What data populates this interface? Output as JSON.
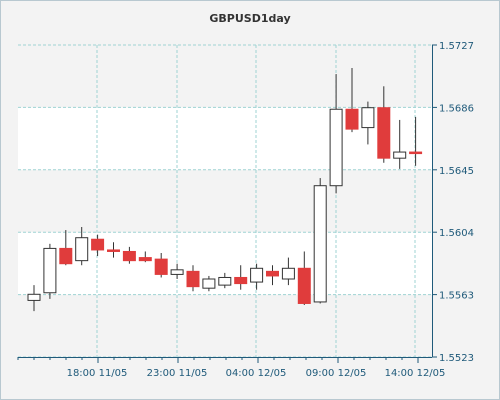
{
  "chart_data": {
    "type": "candlestick",
    "title": "GBPUSD1day",
    "ylim": [
      1.5523,
      1.5727
    ],
    "y_ticks": [
      "1.5523",
      "1.5563",
      "1.5604",
      "1.5645",
      "1.5686",
      "1.5727"
    ],
    "x_ticks": [
      "18:00 11/05",
      "23:00 11/05",
      "04:00 12/05",
      "09:00 12/05",
      "14:00 12/05"
    ],
    "up_color": "#ffffff",
    "down_color": "#e03c3c",
    "grid": true,
    "candles": [
      {
        "open": 1.556,
        "high": 1.557,
        "low": 1.5553,
        "close": 1.5564
      },
      {
        "open": 1.5565,
        "high": 1.5597,
        "low": 1.5561,
        "close": 1.5594
      },
      {
        "open": 1.5594,
        "high": 1.5606,
        "low": 1.5583,
        "close": 1.5584
      },
      {
        "open": 1.5586,
        "high": 1.5608,
        "low": 1.5583,
        "close": 1.5601
      },
      {
        "open": 1.56,
        "high": 1.5603,
        "low": 1.5589,
        "close": 1.5593
      },
      {
        "open": 1.5593,
        "high": 1.5598,
        "low": 1.5588,
        "close": 1.5592
      },
      {
        "open": 1.5592,
        "high": 1.5595,
        "low": 1.5584,
        "close": 1.5586
      },
      {
        "open": 1.5588,
        "high": 1.5592,
        "low": 1.5585,
        "close": 1.5586
      },
      {
        "open": 1.5587,
        "high": 1.5591,
        "low": 1.5575,
        "close": 1.5577
      },
      {
        "open": 1.5577,
        "high": 1.5584,
        "low": 1.5574,
        "close": 1.558
      },
      {
        "open": 1.5579,
        "high": 1.5583,
        "low": 1.5566,
        "close": 1.5569
      },
      {
        "open": 1.5568,
        "high": 1.5576,
        "low": 1.5566,
        "close": 1.5574
      },
      {
        "open": 1.557,
        "high": 1.5578,
        "low": 1.5568,
        "close": 1.5575
      },
      {
        "open": 1.5575,
        "high": 1.5583,
        "low": 1.5567,
        "close": 1.5571
      },
      {
        "open": 1.5572,
        "high": 1.5584,
        "low": 1.5567,
        "close": 1.5581
      },
      {
        "open": 1.5579,
        "high": 1.5583,
        "low": 1.557,
        "close": 1.5576
      },
      {
        "open": 1.5574,
        "high": 1.5588,
        "low": 1.557,
        "close": 1.5581
      },
      {
        "open": 1.5581,
        "high": 1.5592,
        "low": 1.5557,
        "close": 1.5558
      },
      {
        "open": 1.5559,
        "high": 1.564,
        "low": 1.5558,
        "close": 1.5635
      },
      {
        "open": 1.5635,
        "high": 1.5708,
        "low": 1.563,
        "close": 1.5685
      },
      {
        "open": 1.5685,
        "high": 1.5712,
        "low": 1.567,
        "close": 1.5672
      },
      {
        "open": 1.5673,
        "high": 1.569,
        "low": 1.5662,
        "close": 1.5686
      },
      {
        "open": 1.5686,
        "high": 1.57,
        "low": 1.565,
        "close": 1.5653
      },
      {
        "open": 1.5653,
        "high": 1.5678,
        "low": 1.5646,
        "close": 1.5657
      },
      {
        "open": 1.5657,
        "high": 1.568,
        "low": 1.5648,
        "close": 1.5656
      }
    ]
  }
}
